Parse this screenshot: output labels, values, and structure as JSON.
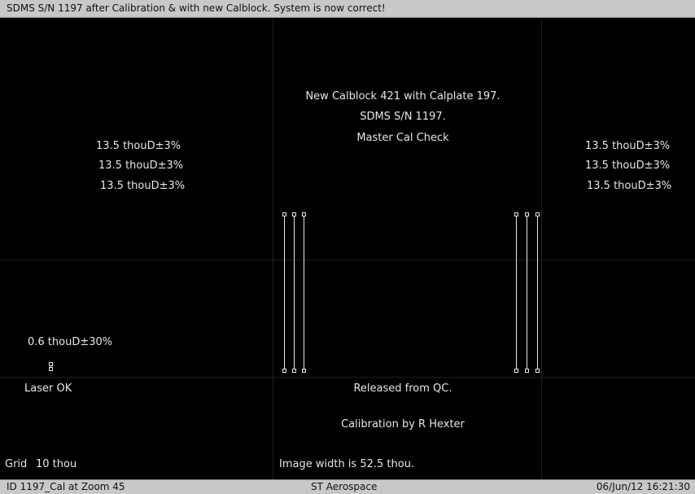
{
  "window": {
    "title": "SDMS S/N 1197 after Calibration & with new Calblock. System is now correct!"
  },
  "overlay": {
    "header_lines": [
      "New Calblock 421 with Calplate 197.",
      "SDMS S/N 1197.",
      "Master Cal Check"
    ],
    "left_measurements": [
      "13.5 thouD±3%",
      "13.5 thouD±3%",
      "13.5 thouD±3%"
    ],
    "right_measurements": [
      "13.5 thouD±3%",
      "13.5 thouD±3%",
      "13.5 thouD±3%"
    ],
    "small_measurement": "0.6 thouD±30%",
    "laser_status": "Laser OK",
    "release_status": "Released from QC.",
    "calibrated_by": "Calibration by R Hexter",
    "grid_label": "Grid",
    "grid_value": "10 thou",
    "image_width": "Image width is 52.5 thou."
  },
  "statusbar": {
    "left": "ID 1197_Cal at Zoom 45",
    "center": "ST Aerospace",
    "right": "06/Jun/12 16:21:30"
  },
  "colors": {
    "background": "#000000",
    "text": "#e6e6e6",
    "bars": "#c8c8c8"
  }
}
